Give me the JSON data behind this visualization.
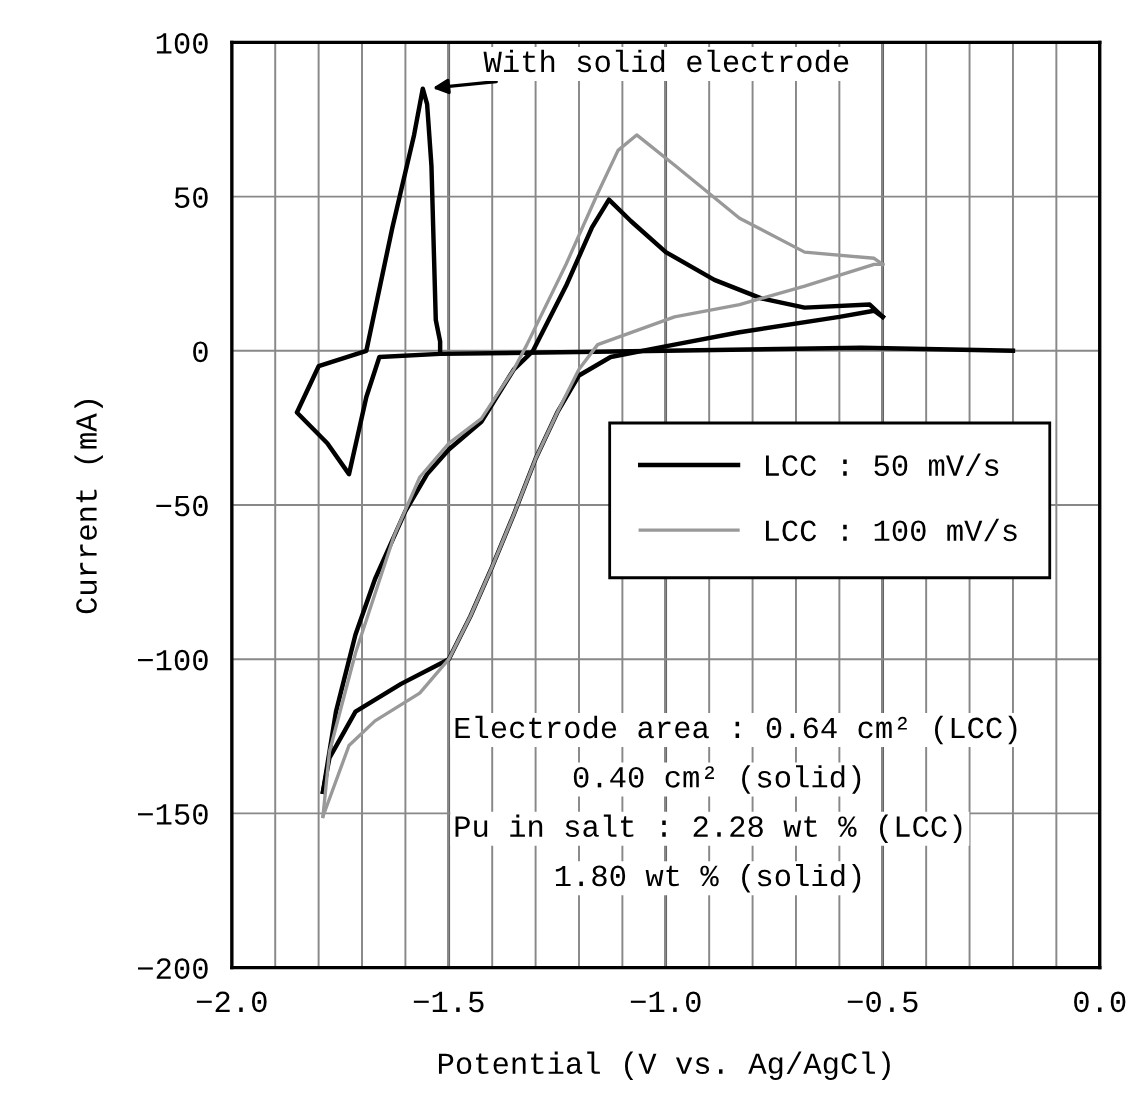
{
  "chart_data": {
    "type": "line",
    "xlabel": "Potential (V vs. Ag/AgCl)",
    "ylabel": "Current (mA)",
    "xlim": [
      -2.0,
      0.0
    ],
    "ylim": [
      -200,
      100
    ],
    "xticks": [
      {
        "value": -2.0,
        "label": "−2.0"
      },
      {
        "value": -1.9,
        "label": null
      },
      {
        "value": -1.8,
        "label": null
      },
      {
        "value": -1.7,
        "label": null
      },
      {
        "value": -1.6,
        "label": null
      },
      {
        "value": -1.5,
        "label": "−1.5"
      },
      {
        "value": -1.4,
        "label": null
      },
      {
        "value": -1.3,
        "label": null
      },
      {
        "value": -1.2,
        "label": null
      },
      {
        "value": -1.1,
        "label": null
      },
      {
        "value": -1.0,
        "label": "−1.0"
      },
      {
        "value": -0.9,
        "label": null
      },
      {
        "value": -0.8,
        "label": null
      },
      {
        "value": -0.7,
        "label": null
      },
      {
        "value": -0.6,
        "label": null
      },
      {
        "value": -0.5,
        "label": "−0.5"
      },
      {
        "value": -0.4,
        "label": null
      },
      {
        "value": -0.3,
        "label": null
      },
      {
        "value": -0.2,
        "label": null
      },
      {
        "value": -0.1,
        "label": null
      },
      {
        "value": 0.0,
        "label": "0.0"
      }
    ],
    "yticks": [
      100,
      50,
      0,
      {
        "value": -50,
        "label": "−50"
      },
      {
        "value": -100,
        "label": "−100"
      },
      {
        "value": -150,
        "label": "−150"
      },
      {
        "value": -200,
        "label": "−200"
      }
    ],
    "grid": true,
    "legend": "right",
    "marker": "none",
    "line_style": "solid",
    "series": [
      {
        "color": "#000000",
        "x": [
          -0.2,
          -0.55,
          -1.0,
          -1.52,
          -1.66,
          -1.69,
          -1.73,
          -1.78,
          -1.85,
          -1.8,
          -1.69,
          -1.63,
          -1.58,
          -1.56,
          -1.55,
          -1.54,
          -1.53,
          -1.52,
          -1.52
        ],
        "values": [
          0,
          1,
          0,
          -1,
          -2,
          -15,
          -40,
          -30,
          -20,
          -5,
          0,
          40,
          70,
          85,
          80,
          60,
          10,
          3,
          0
        ]
      },
      {
        "name": "LCC : 50 mV/s",
        "color": "#000000",
        "x": [
          -1.79,
          -1.76,
          -1.715,
          -1.67,
          -1.6,
          -1.55,
          -1.5,
          -1.425,
          -1.35,
          -1.306,
          -1.23,
          -1.17,
          -1.131,
          -1.08,
          -1.0,
          -0.888,
          -0.78,
          -0.68,
          -0.53,
          -0.5
        ],
        "values": [
          -143,
          -117,
          -92,
          -74,
          -52,
          -40,
          -32,
          -23,
          -6,
          0,
          21,
          40,
          49,
          42,
          32,
          23,
          17,
          14,
          15,
          11
        ]
      },
      {
        "color": "#000000",
        "x": [
          -0.5,
          -0.52,
          -0.6,
          -0.83,
          -0.98,
          -1.127,
          -1.2,
          -1.25,
          -1.3,
          -1.35,
          -1.4,
          -1.45,
          -1.5,
          -1.61,
          -1.715,
          -1.775,
          -1.79
        ],
        "values": [
          11,
          13,
          11,
          6,
          2,
          -2,
          -8,
          -20,
          -35,
          -53,
          -70,
          -86,
          -100,
          -108,
          -117,
          -132,
          -143
        ]
      },
      {
        "name": "LCC : 100 mV/s",
        "color": "#999999",
        "x": [
          -1.79,
          -1.775,
          -1.715,
          -1.626,
          -1.567,
          -1.5,
          -1.425,
          -1.35,
          -1.32,
          -1.23,
          -1.157,
          -1.11,
          -1.067,
          -0.978,
          -0.83,
          -0.68,
          -0.52,
          -0.5
        ],
        "values": [
          -151,
          -130,
          -98,
          -60,
          -41,
          -30,
          -22,
          -6,
          2,
          28,
          51,
          65,
          70,
          60,
          43,
          32,
          30,
          28
        ]
      },
      {
        "color": "#999999",
        "x": [
          -0.5,
          -0.52,
          -0.68,
          -0.83,
          -0.98,
          -1.157,
          -1.2,
          -1.25,
          -1.3,
          -1.35,
          -1.4,
          -1.45,
          -1.5,
          -1.567,
          -1.67,
          -1.73,
          -1.79
        ],
        "values": [
          28,
          28,
          21,
          15,
          11,
          2,
          -6,
          -20,
          -35,
          -53,
          -70,
          -86,
          -100,
          -111,
          -120,
          -128,
          -151
        ]
      }
    ],
    "annotations": [
      {
        "text": "With solid electrode",
        "x": -1.55,
        "y": 85
      },
      "Electrode area : 0.64 cm² (LCC)",
      "0.40 cm² (solid)",
      "Pu in salt : 2.28 wt % (LCC)",
      "1.80 wt % (solid)"
    ]
  }
}
